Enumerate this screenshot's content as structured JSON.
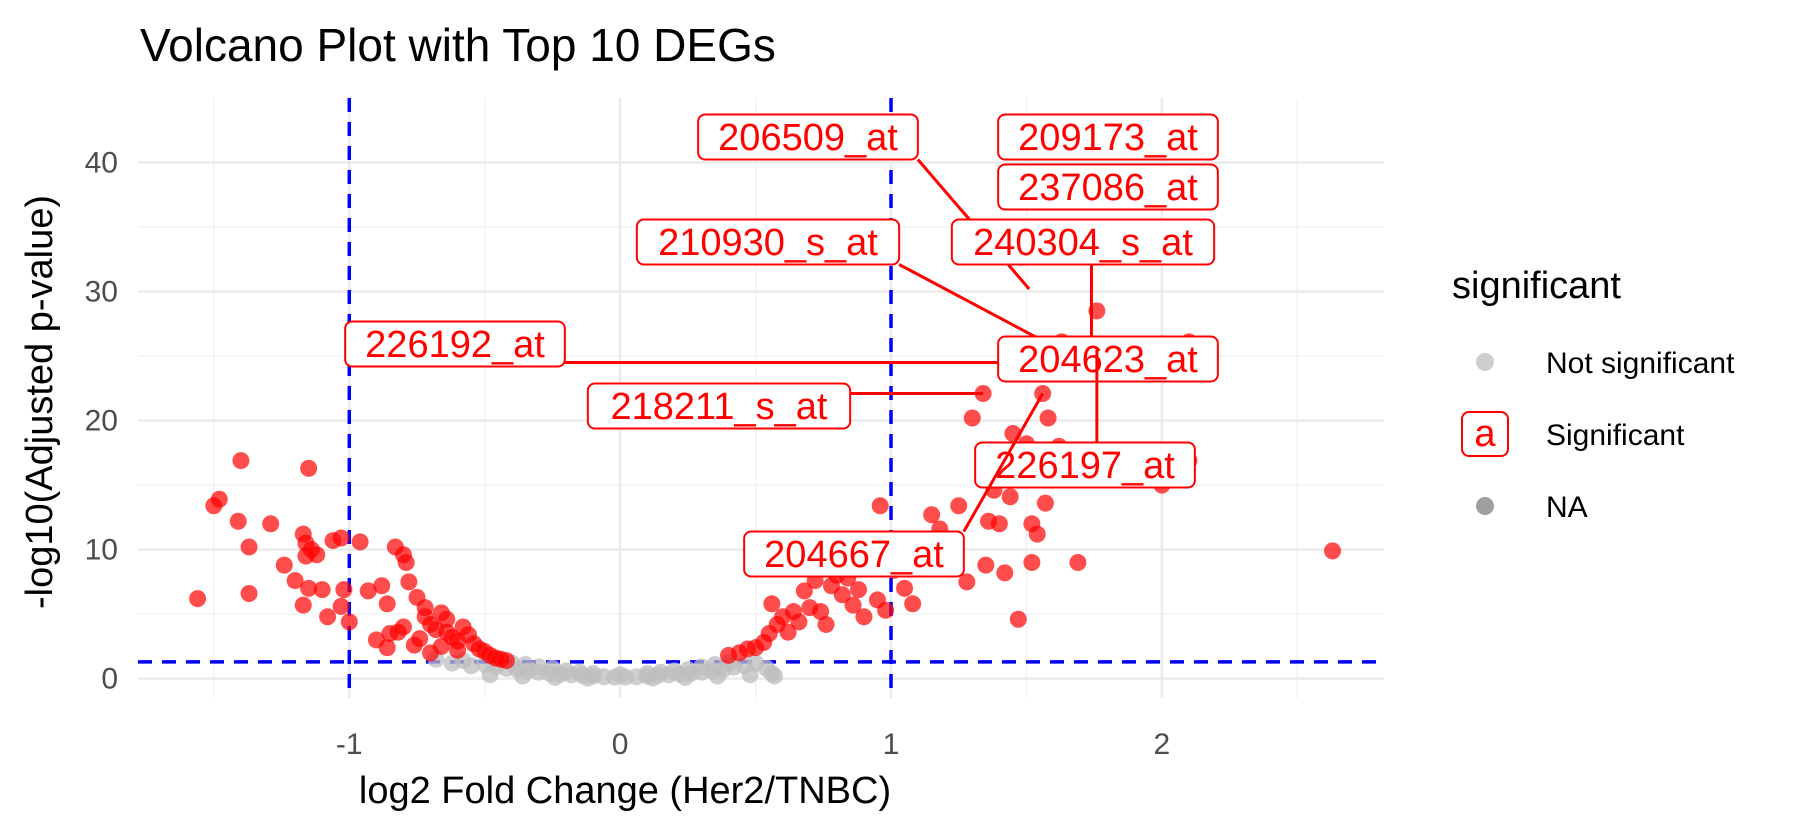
{
  "chart_data": {
    "type": "scatter",
    "title": "Volcano Plot with Top 10 DEGs",
    "xlabel": "log2 Fold Change (Her2/TNBC)",
    "ylabel": "-log10(Adjusted p-value)",
    "xlim": [
      -1.78,
      2.82
    ],
    "ylim": [
      -1.5,
      45
    ],
    "x_ticks": [
      -1,
      0,
      1,
      2
    ],
    "x_tick_labels": [
      "-1",
      "0",
      "1",
      "2"
    ],
    "y_ticks": [
      0,
      10,
      20,
      30,
      40
    ],
    "y_tick_labels": [
      "0",
      "10",
      "20",
      "30",
      "40"
    ],
    "grid": true,
    "legend_position": "right",
    "thresholds": {
      "log2fc": [
        -1,
        1
      ],
      "neg_log10_padj": 1.3,
      "color": "#0000ff",
      "style": "dashed"
    },
    "legend": {
      "title": "significant",
      "entries": [
        {
          "label": "Not significant",
          "color": "#bebebe",
          "swatch": "point"
        },
        {
          "label": "Significant",
          "color": "#ff0000",
          "swatch": "label",
          "glyph": "a"
        },
        {
          "label": "NA",
          "color": "#7f7f7f",
          "swatch": "point"
        }
      ]
    },
    "series": [
      {
        "name": "Not significant",
        "color": "#bebebe",
        "points": [
          [
            -0.68,
            1.5
          ],
          [
            -0.62,
            1.2
          ],
          [
            -0.58,
            1.4
          ],
          [
            -0.55,
            1.0
          ],
          [
            -0.5,
            1.1
          ],
          [
            -0.46,
            0.9
          ],
          [
            -0.42,
            0.8
          ],
          [
            -0.38,
            0.7
          ],
          [
            -0.34,
            0.6
          ],
          [
            -0.3,
            0.5
          ],
          [
            -0.26,
            0.4
          ],
          [
            -0.22,
            0.35
          ],
          [
            -0.18,
            0.3
          ],
          [
            -0.14,
            0.25
          ],
          [
            -0.1,
            0.2
          ],
          [
            -0.06,
            0.15
          ],
          [
            -0.02,
            0.12
          ],
          [
            0.02,
            0.12
          ],
          [
            0.06,
            0.15
          ],
          [
            0.1,
            0.2
          ],
          [
            0.14,
            0.25
          ],
          [
            0.18,
            0.3
          ],
          [
            0.22,
            0.35
          ],
          [
            0.26,
            0.4
          ],
          [
            0.3,
            0.5
          ],
          [
            0.34,
            0.6
          ],
          [
            0.38,
            0.7
          ],
          [
            0.42,
            0.9
          ],
          [
            0.46,
            1.0
          ],
          [
            0.5,
            1.2
          ],
          [
            0.54,
            0.8
          ],
          [
            0.56,
            0.4
          ],
          [
            0.57,
            0.2
          ],
          [
            -0.4,
            1.2
          ],
          [
            -0.35,
            1.1
          ],
          [
            -0.3,
            0.9
          ],
          [
            -0.25,
            0.8
          ],
          [
            0.25,
            0.7
          ],
          [
            0.3,
            0.9
          ],
          [
            0.35,
            1.1
          ],
          [
            0.4,
            1.2
          ],
          [
            -0.2,
            0.6
          ],
          [
            -0.15,
            0.5
          ],
          [
            -0.1,
            0.4
          ],
          [
            0.0,
            0.3
          ],
          [
            0.1,
            0.4
          ],
          [
            0.15,
            0.5
          ],
          [
            0.2,
            0.6
          ],
          [
            -0.48,
            0.3
          ],
          [
            -0.36,
            0.2
          ],
          [
            -0.24,
            0.1
          ],
          [
            -0.12,
            0.05
          ],
          [
            0.12,
            0.05
          ],
          [
            0.24,
            0.1
          ],
          [
            0.36,
            0.2
          ],
          [
            0.48,
            0.3
          ]
        ]
      },
      {
        "name": "Significant",
        "color": "#ff0000",
        "points": [
          [
            -1.56,
            6.2
          ],
          [
            -1.5,
            13.4
          ],
          [
            -1.48,
            13.9
          ],
          [
            -1.4,
            16.9
          ],
          [
            -1.41,
            12.2
          ],
          [
            -1.37,
            10.2
          ],
          [
            -1.37,
            6.6
          ],
          [
            -1.29,
            12.0
          ],
          [
            -1.24,
            8.8
          ],
          [
            -1.2,
            7.6
          ],
          [
            -1.17,
            11.2
          ],
          [
            -1.16,
            10.5
          ],
          [
            -1.16,
            9.5
          ],
          [
            -1.15,
            16.3
          ],
          [
            -1.14,
            10.0
          ],
          [
            -1.12,
            9.6
          ],
          [
            -1.15,
            7.0
          ],
          [
            -1.17,
            5.7
          ],
          [
            -1.1,
            6.9
          ],
          [
            -1.08,
            4.8
          ],
          [
            -1.06,
            10.7
          ],
          [
            -1.03,
            10.9
          ],
          [
            -1.03,
            5.6
          ],
          [
            -1.0,
            4.4
          ],
          [
            -1.02,
            6.9
          ],
          [
            -0.96,
            10.6
          ],
          [
            -0.93,
            6.8
          ],
          [
            -0.88,
            7.2
          ],
          [
            -0.86,
            5.8
          ],
          [
            -0.85,
            3.5
          ],
          [
            -0.83,
            10.2
          ],
          [
            -0.8,
            9.6
          ],
          [
            -0.79,
            9.0
          ],
          [
            -0.78,
            7.5
          ],
          [
            -0.75,
            6.3
          ],
          [
            -0.72,
            5.5
          ],
          [
            -0.7,
            4.2
          ],
          [
            -0.68,
            3.8
          ],
          [
            -0.66,
            5.1
          ],
          [
            -0.64,
            4.6
          ],
          [
            -0.62,
            3.2
          ],
          [
            -0.6,
            2.9
          ],
          [
            -0.58,
            4.0
          ],
          [
            -0.56,
            3.4
          ],
          [
            -0.54,
            2.7
          ],
          [
            -0.52,
            2.3
          ],
          [
            -0.5,
            2.1
          ],
          [
            -0.48,
            1.8
          ],
          [
            -0.46,
            1.6
          ],
          [
            -0.44,
            1.5
          ],
          [
            -0.42,
            1.4
          ],
          [
            -0.74,
            3.1
          ],
          [
            -0.8,
            4.0
          ],
          [
            -0.86,
            2.4
          ],
          [
            -0.9,
            3.0
          ],
          [
            -0.66,
            2.5
          ],
          [
            -0.7,
            2.0
          ],
          [
            -0.6,
            2.2
          ],
          [
            -0.76,
            2.6
          ],
          [
            -0.82,
            3.6
          ],
          [
            -0.72,
            4.8
          ],
          [
            -0.64,
            3.6
          ],
          [
            0.4,
            1.8
          ],
          [
            0.44,
            2.0
          ],
          [
            0.47,
            2.3
          ],
          [
            0.5,
            2.4
          ],
          [
            0.53,
            2.8
          ],
          [
            0.55,
            3.5
          ],
          [
            0.56,
            5.8
          ],
          [
            0.58,
            4.2
          ],
          [
            0.6,
            4.8
          ],
          [
            0.62,
            3.6
          ],
          [
            0.64,
            5.2
          ],
          [
            0.66,
            4.4
          ],
          [
            0.68,
            6.8
          ],
          [
            0.7,
            5.5
          ],
          [
            0.65,
            9.5
          ],
          [
            0.72,
            7.6
          ],
          [
            0.74,
            5.2
          ],
          [
            0.76,
            4.2
          ],
          [
            0.78,
            7.2
          ],
          [
            0.8,
            8.0
          ],
          [
            0.82,
            6.5
          ],
          [
            0.84,
            7.8
          ],
          [
            0.86,
            5.7
          ],
          [
            0.88,
            6.9
          ],
          [
            0.9,
            4.8
          ],
          [
            0.92,
            8.8
          ],
          [
            0.95,
            6.1
          ],
          [
            0.96,
            13.4
          ],
          [
            0.98,
            5.3
          ],
          [
            1.01,
            8.4
          ],
          [
            1.03,
            10.2
          ],
          [
            1.05,
            7.0
          ],
          [
            1.08,
            5.8
          ],
          [
            1.1,
            8.5
          ],
          [
            1.12,
            9.0
          ],
          [
            1.15,
            12.7
          ],
          [
            1.18,
            11.6
          ],
          [
            1.2,
            10.8
          ],
          [
            1.22,
            9.0
          ],
          [
            1.25,
            13.4
          ],
          [
            1.28,
            7.5
          ],
          [
            1.3,
            20.2
          ],
          [
            1.34,
            22.1
          ],
          [
            1.36,
            12.2
          ],
          [
            1.38,
            14.6
          ],
          [
            1.4,
            12.0
          ],
          [
            1.43,
            17.6
          ],
          [
            1.45,
            19.0
          ],
          [
            1.48,
            15.8
          ],
          [
            1.5,
            18.2
          ],
          [
            1.52,
            12.0
          ],
          [
            1.55,
            16.2
          ],
          [
            1.56,
            22.1
          ],
          [
            1.58,
            20.2
          ],
          [
            1.6,
            15.8
          ],
          [
            1.63,
            16.8
          ],
          [
            1.66,
            15.7
          ],
          [
            1.35,
            8.8
          ],
          [
            1.42,
            8.2
          ],
          [
            1.47,
            4.6
          ],
          [
            1.52,
            9.0
          ],
          [
            1.69,
            9.0
          ],
          [
            1.76,
            28.5
          ],
          [
            1.63,
            26.1
          ],
          [
            1.7,
            25.3
          ],
          [
            1.8,
            25.5
          ],
          [
            1.46,
            24.5
          ],
          [
            2.0,
            15.0
          ],
          [
            2.1,
            26.1
          ],
          [
            2.1,
            16.9
          ],
          [
            2.1,
            43.1
          ],
          [
            2.63,
            9.9
          ],
          [
            1.62,
            18.0
          ],
          [
            1.57,
            13.6
          ],
          [
            1.54,
            11.2
          ],
          [
            1.44,
            14.1
          ]
        ]
      }
    ],
    "annotations": [
      {
        "text": "206509_at",
        "box": [
          1.94,
          2.81,
          1.0,
          3.23
        ],
        "anchor": [
          1.51,
          30.2
        ]
      },
      {
        "text": "209173_at",
        "box": [
          1.94,
          6.06,
          1.0,
          4.61
        ],
        "anchor": [
          2.09,
          43.1
        ]
      },
      {
        "text": "237086_at",
        "box": [
          2.1,
          1.02,
          1.0,
          2.22
        ],
        "anchor": [
          2.09,
          37.3
        ]
      },
      {
        "text": "240304_s_at",
        "box": [
          1.79,
          2.59,
          0.7,
          1.0
        ],
        "anchor": [
          1.74,
          25.5
        ]
      },
      {
        "text": "210930_s_at",
        "box": [
          0.79,
          1.32,
          0.8,
          3.09
        ],
        "anchor": [
          1.64,
          25.3
        ]
      },
      {
        "text": "226192_at",
        "box": [
          -0.19,
          1.32,
          0.62,
          1.28
        ],
        "anchor": [
          1.46,
          24.5
        ]
      },
      {
        "text": "204623_at",
        "box": [
          2.09,
          1.02,
          0.96,
          1.05
        ],
        "anchor": [
          2.1,
          26.1
        ]
      },
      {
        "text": "218211_s_at",
        "box": [
          0.36,
          1.32,
          0.9,
          0.62
        ],
        "anchor": [
          1.34,
          22.1
        ]
      },
      {
        "text": "226197_at",
        "box": [
          2.13,
          1.02,
          0.96,
          2.63
        ],
        "anchor": [
          1.76,
          25.5
        ]
      },
      {
        "text": "204667_at",
        "box": [
          0.92,
          1.32,
          2.33,
          1.61
        ],
        "anchor": [
          1.56,
          22.1
        ]
      }
    ]
  }
}
